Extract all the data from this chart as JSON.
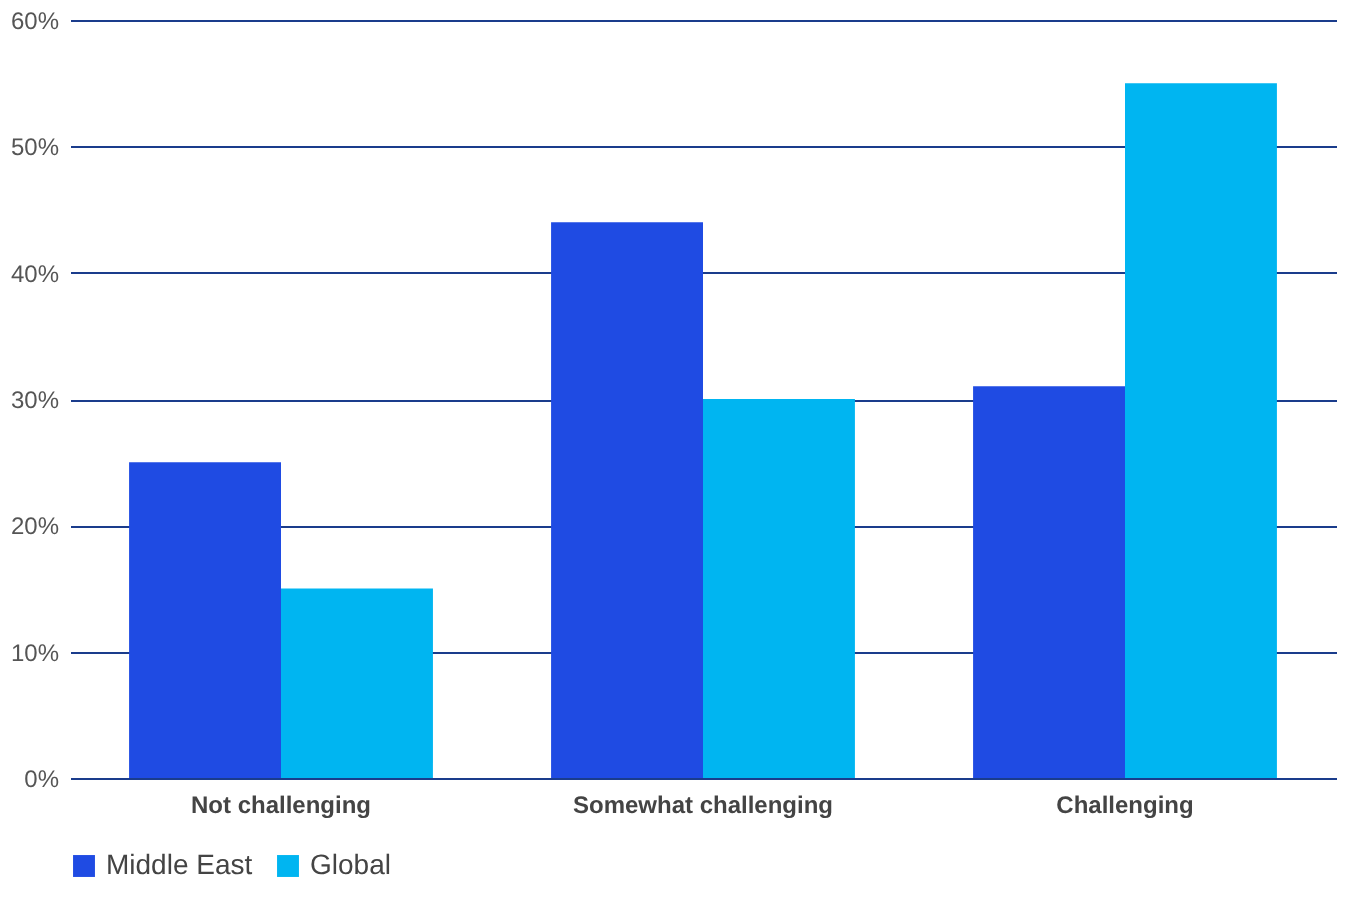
{
  "chart_data": {
    "type": "bar",
    "categories": [
      "Not challenging",
      "Somewhat challenging",
      "Challenging"
    ],
    "series": [
      {
        "name": "Middle East",
        "color": "#1f4be3",
        "values": [
          25,
          44,
          31
        ]
      },
      {
        "name": "Global",
        "color": "#00b5f1",
        "values": [
          15,
          30,
          55
        ]
      }
    ],
    "ylim": [
      0,
      60
    ],
    "yticks": [
      {
        "value": 0,
        "label": "0%"
      },
      {
        "value": 10,
        "label": "10%"
      },
      {
        "value": 20,
        "label": "20%"
      },
      {
        "value": 30,
        "label": "30%"
      },
      {
        "value": 40,
        "label": "40%"
      },
      {
        "value": 50,
        "label": "50%"
      },
      {
        "value": 60,
        "label": "60%"
      }
    ],
    "grid": "y",
    "legend": "bottom"
  }
}
